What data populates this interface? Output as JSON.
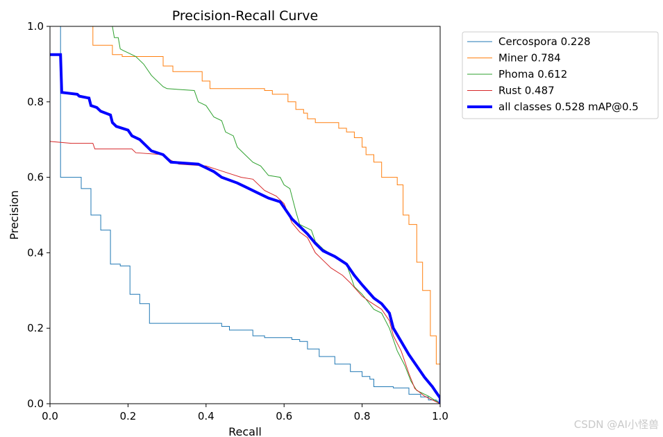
{
  "watermark": "CSDN @AI小怪兽",
  "chart_data": {
    "type": "line",
    "title": "Precision-Recall Curve",
    "xlabel": "Recall",
    "ylabel": "Precision",
    "xlim": [
      0,
      1
    ],
    "ylim": [
      0,
      1
    ],
    "xticks": [
      "0.0",
      "0.2",
      "0.4",
      "0.6",
      "0.8",
      "1.0"
    ],
    "yticks": [
      "0.0",
      "0.2",
      "0.4",
      "0.6",
      "0.8",
      "1.0"
    ],
    "grid": false,
    "legend_position": "outside-right",
    "series": [
      {
        "name": "Cercospora 0.228",
        "color": "#1f77b4",
        "width": 1,
        "points": [
          [
            0.0,
            1.0
          ],
          [
            0.027,
            1.0
          ],
          [
            0.027,
            0.6
          ],
          [
            0.08,
            0.6
          ],
          [
            0.08,
            0.57
          ],
          [
            0.105,
            0.57
          ],
          [
            0.105,
            0.5
          ],
          [
            0.13,
            0.5
          ],
          [
            0.13,
            0.46
          ],
          [
            0.155,
            0.46
          ],
          [
            0.155,
            0.37
          ],
          [
            0.18,
            0.37
          ],
          [
            0.18,
            0.365
          ],
          [
            0.205,
            0.365
          ],
          [
            0.205,
            0.29
          ],
          [
            0.23,
            0.29
          ],
          [
            0.23,
            0.265
          ],
          [
            0.255,
            0.265
          ],
          [
            0.255,
            0.213
          ],
          [
            0.44,
            0.213
          ],
          [
            0.44,
            0.205
          ],
          [
            0.46,
            0.205
          ],
          [
            0.46,
            0.195
          ],
          [
            0.52,
            0.195
          ],
          [
            0.52,
            0.18
          ],
          [
            0.55,
            0.18
          ],
          [
            0.55,
            0.175
          ],
          [
            0.62,
            0.175
          ],
          [
            0.62,
            0.17
          ],
          [
            0.64,
            0.17
          ],
          [
            0.64,
            0.165
          ],
          [
            0.66,
            0.165
          ],
          [
            0.66,
            0.145
          ],
          [
            0.69,
            0.145
          ],
          [
            0.69,
            0.125
          ],
          [
            0.73,
            0.125
          ],
          [
            0.73,
            0.105
          ],
          [
            0.77,
            0.105
          ],
          [
            0.77,
            0.085
          ],
          [
            0.8,
            0.085
          ],
          [
            0.8,
            0.072
          ],
          [
            0.82,
            0.072
          ],
          [
            0.82,
            0.065
          ],
          [
            0.83,
            0.065
          ],
          [
            0.83,
            0.045
          ],
          [
            0.88,
            0.045
          ],
          [
            0.88,
            0.042
          ],
          [
            0.92,
            0.042
          ],
          [
            0.92,
            0.025
          ],
          [
            0.95,
            0.025
          ],
          [
            0.95,
            0.018
          ],
          [
            0.97,
            0.018
          ],
          [
            0.97,
            0.01
          ],
          [
            0.99,
            0.01
          ],
          [
            1.0,
            0.0
          ]
        ]
      },
      {
        "name": "Miner 0.784",
        "color": "#ff7f0e",
        "width": 1,
        "points": [
          [
            0.105,
            1.0
          ],
          [
            0.11,
            1.0
          ],
          [
            0.11,
            0.95
          ],
          [
            0.16,
            0.95
          ],
          [
            0.16,
            0.925
          ],
          [
            0.185,
            0.925
          ],
          [
            0.185,
            0.92
          ],
          [
            0.29,
            0.92
          ],
          [
            0.29,
            0.895
          ],
          [
            0.315,
            0.895
          ],
          [
            0.315,
            0.88
          ],
          [
            0.39,
            0.88
          ],
          [
            0.39,
            0.855
          ],
          [
            0.41,
            0.855
          ],
          [
            0.41,
            0.835
          ],
          [
            0.55,
            0.835
          ],
          [
            0.55,
            0.83
          ],
          [
            0.57,
            0.83
          ],
          [
            0.57,
            0.82
          ],
          [
            0.61,
            0.82
          ],
          [
            0.61,
            0.8
          ],
          [
            0.63,
            0.8
          ],
          [
            0.63,
            0.78
          ],
          [
            0.65,
            0.78
          ],
          [
            0.65,
            0.77
          ],
          [
            0.66,
            0.77
          ],
          [
            0.66,
            0.755
          ],
          [
            0.68,
            0.755
          ],
          [
            0.68,
            0.745
          ],
          [
            0.74,
            0.745
          ],
          [
            0.74,
            0.73
          ],
          [
            0.76,
            0.73
          ],
          [
            0.76,
            0.72
          ],
          [
            0.78,
            0.72
          ],
          [
            0.78,
            0.705
          ],
          [
            0.8,
            0.705
          ],
          [
            0.8,
            0.68
          ],
          [
            0.81,
            0.68
          ],
          [
            0.81,
            0.66
          ],
          [
            0.83,
            0.66
          ],
          [
            0.83,
            0.64
          ],
          [
            0.85,
            0.64
          ],
          [
            0.85,
            0.6
          ],
          [
            0.89,
            0.6
          ],
          [
            0.89,
            0.58
          ],
          [
            0.905,
            0.58
          ],
          [
            0.905,
            0.5
          ],
          [
            0.92,
            0.5
          ],
          [
            0.92,
            0.475
          ],
          [
            0.94,
            0.475
          ],
          [
            0.94,
            0.375
          ],
          [
            0.955,
            0.375
          ],
          [
            0.955,
            0.3
          ],
          [
            0.975,
            0.3
          ],
          [
            0.975,
            0.18
          ],
          [
            0.99,
            0.18
          ],
          [
            0.99,
            0.105
          ],
          [
            1.0,
            0.105
          ],
          [
            1.0,
            0.0
          ]
        ]
      },
      {
        "name": "Phoma 0.612",
        "color": "#2ca02c",
        "width": 1,
        "points": [
          [
            0.16,
            1.0
          ],
          [
            0.165,
            0.97
          ],
          [
            0.175,
            0.97
          ],
          [
            0.18,
            0.94
          ],
          [
            0.19,
            0.935
          ],
          [
            0.2,
            0.93
          ],
          [
            0.22,
            0.92
          ],
          [
            0.24,
            0.9
          ],
          [
            0.26,
            0.87
          ],
          [
            0.27,
            0.86
          ],
          [
            0.29,
            0.84
          ],
          [
            0.3,
            0.835
          ],
          [
            0.37,
            0.83
          ],
          [
            0.38,
            0.8
          ],
          [
            0.4,
            0.79
          ],
          [
            0.42,
            0.76
          ],
          [
            0.44,
            0.75
          ],
          [
            0.45,
            0.72
          ],
          [
            0.47,
            0.71
          ],
          [
            0.48,
            0.68
          ],
          [
            0.5,
            0.66
          ],
          [
            0.52,
            0.64
          ],
          [
            0.54,
            0.63
          ],
          [
            0.56,
            0.605
          ],
          [
            0.59,
            0.6
          ],
          [
            0.6,
            0.58
          ],
          [
            0.615,
            0.57
          ],
          [
            0.63,
            0.51
          ],
          [
            0.64,
            0.475
          ],
          [
            0.67,
            0.46
          ],
          [
            0.68,
            0.43
          ],
          [
            0.7,
            0.41
          ],
          [
            0.73,
            0.39
          ],
          [
            0.76,
            0.37
          ],
          [
            0.78,
            0.31
          ],
          [
            0.8,
            0.29
          ],
          [
            0.83,
            0.25
          ],
          [
            0.85,
            0.24
          ],
          [
            0.87,
            0.2
          ],
          [
            0.89,
            0.14
          ],
          [
            0.91,
            0.1
          ],
          [
            0.925,
            0.06
          ],
          [
            0.94,
            0.035
          ],
          [
            0.97,
            0.02
          ],
          [
            1.0,
            0.0
          ]
        ]
      },
      {
        "name": "Rust 0.487",
        "color": "#d62728",
        "width": 1,
        "points": [
          [
            0.0,
            0.695
          ],
          [
            0.055,
            0.69
          ],
          [
            0.11,
            0.69
          ],
          [
            0.115,
            0.675
          ],
          [
            0.21,
            0.675
          ],
          [
            0.22,
            0.665
          ],
          [
            0.29,
            0.66
          ],
          [
            0.31,
            0.645
          ],
          [
            0.33,
            0.635
          ],
          [
            0.4,
            0.63
          ],
          [
            0.43,
            0.62
          ],
          [
            0.46,
            0.61
          ],
          [
            0.49,
            0.6
          ],
          [
            0.52,
            0.595
          ],
          [
            0.55,
            0.565
          ],
          [
            0.58,
            0.55
          ],
          [
            0.6,
            0.53
          ],
          [
            0.62,
            0.48
          ],
          [
            0.64,
            0.455
          ],
          [
            0.66,
            0.44
          ],
          [
            0.68,
            0.4
          ],
          [
            0.7,
            0.38
          ],
          [
            0.72,
            0.36
          ],
          [
            0.75,
            0.34
          ],
          [
            0.77,
            0.32
          ],
          [
            0.8,
            0.285
          ],
          [
            0.82,
            0.27
          ],
          [
            0.85,
            0.25
          ],
          [
            0.87,
            0.22
          ],
          [
            0.88,
            0.18
          ],
          [
            0.9,
            0.14
          ],
          [
            0.92,
            0.08
          ],
          [
            0.935,
            0.04
          ],
          [
            0.96,
            0.02
          ],
          [
            1.0,
            0.0
          ]
        ]
      },
      {
        "name": "all classes 0.528 mAP@0.5",
        "color": "#0000ff",
        "width": 4,
        "points": [
          [
            0.0,
            0.925
          ],
          [
            0.027,
            0.925
          ],
          [
            0.03,
            0.825
          ],
          [
            0.07,
            0.82
          ],
          [
            0.075,
            0.815
          ],
          [
            0.1,
            0.81
          ],
          [
            0.105,
            0.79
          ],
          [
            0.12,
            0.785
          ],
          [
            0.13,
            0.775
          ],
          [
            0.155,
            0.765
          ],
          [
            0.16,
            0.745
          ],
          [
            0.17,
            0.735
          ],
          [
            0.2,
            0.725
          ],
          [
            0.21,
            0.71
          ],
          [
            0.23,
            0.7
          ],
          [
            0.26,
            0.67
          ],
          [
            0.29,
            0.66
          ],
          [
            0.31,
            0.64
          ],
          [
            0.38,
            0.635
          ],
          [
            0.4,
            0.625
          ],
          [
            0.42,
            0.615
          ],
          [
            0.44,
            0.6
          ],
          [
            0.48,
            0.585
          ],
          [
            0.5,
            0.575
          ],
          [
            0.53,
            0.56
          ],
          [
            0.56,
            0.545
          ],
          [
            0.59,
            0.535
          ],
          [
            0.6,
            0.52
          ],
          [
            0.62,
            0.49
          ],
          [
            0.64,
            0.47
          ],
          [
            0.66,
            0.45
          ],
          [
            0.68,
            0.425
          ],
          [
            0.7,
            0.405
          ],
          [
            0.73,
            0.39
          ],
          [
            0.76,
            0.37
          ],
          [
            0.78,
            0.34
          ],
          [
            0.8,
            0.315
          ],
          [
            0.83,
            0.28
          ],
          [
            0.85,
            0.265
          ],
          [
            0.87,
            0.24
          ],
          [
            0.88,
            0.2
          ],
          [
            0.9,
            0.165
          ],
          [
            0.92,
            0.13
          ],
          [
            0.94,
            0.1
          ],
          [
            0.96,
            0.07
          ],
          [
            0.98,
            0.045
          ],
          [
            0.99,
            0.03
          ],
          [
            1.0,
            0.015
          ],
          [
            1.0,
            0.0
          ]
        ]
      }
    ]
  }
}
